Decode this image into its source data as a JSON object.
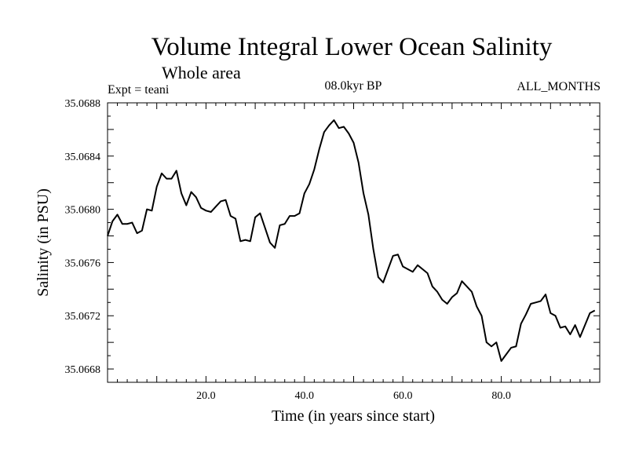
{
  "chart_data": {
    "type": "line",
    "title": "Volume Integral Lower Ocean Salinity",
    "subtitle": "Whole area",
    "experiment_label": "Expt = teani",
    "period_label": "08.0kyr BP",
    "months_label": "ALL_MONTHS",
    "xlabel": "Time (in years since start)",
    "ylabel": "Salinity (in PSU)",
    "xlim": [
      0,
      100
    ],
    "ylim": [
      35.0667,
      35.0688
    ],
    "x_ticks": [
      {
        "value": 20,
        "label": "20.0"
      },
      {
        "value": 40,
        "label": "40.0"
      },
      {
        "value": 60,
        "label": "60.0"
      },
      {
        "value": 80,
        "label": "80.0"
      }
    ],
    "y_ticks": [
      {
        "value": 35.0668,
        "label": "35.0668"
      },
      {
        "value": 35.0672,
        "label": "35.0672"
      },
      {
        "value": 35.0676,
        "label": "35.0676"
      },
      {
        "value": 35.068,
        "label": "35.0680"
      },
      {
        "value": 35.0684,
        "label": "35.0684"
      },
      {
        "value": 35.0688,
        "label": "35.0688"
      }
    ],
    "series": [
      {
        "name": "Salinity",
        "x": [
          0,
          1,
          2,
          3,
          4,
          5,
          6,
          7,
          8,
          9,
          10,
          11,
          12,
          13,
          14,
          15,
          16,
          17,
          18,
          19,
          20,
          21,
          22,
          23,
          24,
          25,
          26,
          27,
          28,
          29,
          30,
          31,
          32,
          33,
          34,
          35,
          36,
          37,
          38,
          39,
          40,
          41,
          42,
          43,
          44,
          45,
          46,
          47,
          48,
          49,
          50,
          51,
          52,
          53,
          54,
          55,
          56,
          57,
          58,
          59,
          60,
          61,
          62,
          63,
          64,
          65,
          66,
          67,
          68,
          69,
          70,
          71,
          72,
          73,
          74,
          75,
          76,
          77,
          78,
          79,
          80,
          81,
          82,
          83,
          84,
          85,
          86,
          87,
          88,
          89,
          90,
          91,
          92,
          93,
          94,
          95,
          96,
          97,
          98,
          99
        ],
        "values": [
          35.0678,
          35.06791,
          35.06796,
          35.06789,
          35.06789,
          35.0679,
          35.06782,
          35.06784,
          35.068,
          35.06799,
          35.06817,
          35.06827,
          35.06823,
          35.06823,
          35.06829,
          35.06812,
          35.06803,
          35.06813,
          35.06809,
          35.06801,
          35.06799,
          35.06798,
          35.06802,
          35.06806,
          35.06807,
          35.06795,
          35.06793,
          35.06776,
          35.06777,
          35.06776,
          35.06794,
          35.06797,
          35.06786,
          35.06775,
          35.06771,
          35.06788,
          35.06789,
          35.06795,
          35.06795,
          35.06797,
          35.06812,
          35.06819,
          35.0683,
          35.06845,
          35.06858,
          35.06863,
          35.06867,
          35.06861,
          35.06862,
          35.06857,
          35.0685,
          35.06835,
          35.06812,
          35.06796,
          35.0677,
          35.06749,
          35.06745,
          35.06755,
          35.06765,
          35.06766,
          35.06757,
          35.06755,
          35.06753,
          35.06758,
          35.06755,
          35.06752,
          35.06742,
          35.06738,
          35.06732,
          35.06729,
          35.06734,
          35.06737,
          35.06746,
          35.06742,
          35.06738,
          35.06727,
          35.0672,
          35.067,
          35.06697,
          35.067,
          35.06686,
          35.06691,
          35.06696,
          35.06697,
          35.06714,
          35.06721,
          35.06729,
          35.0673,
          35.06731,
          35.06736,
          35.06722,
          35.0672,
          35.06711,
          35.06712,
          35.06706,
          35.06713,
          35.06704,
          35.06713,
          35.06722,
          35.06724
        ]
      }
    ]
  }
}
